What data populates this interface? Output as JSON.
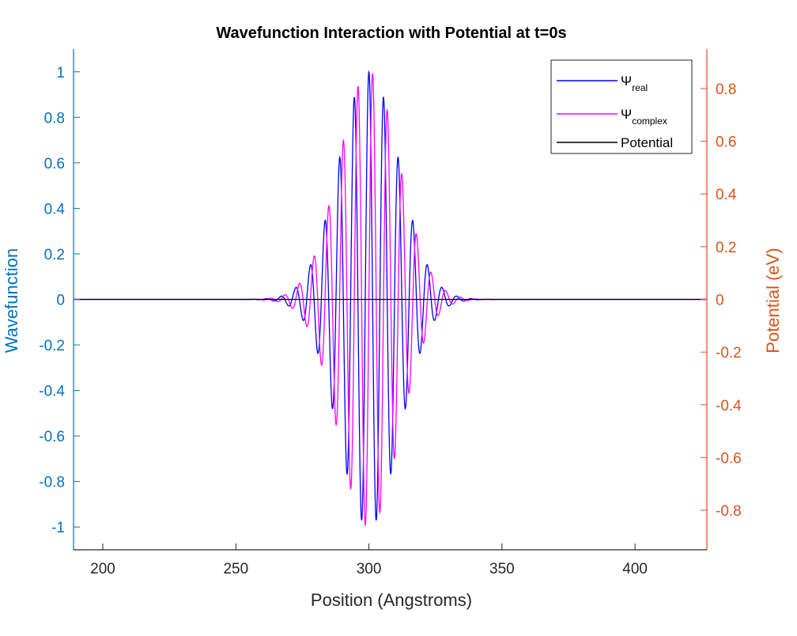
{
  "chart_data": {
    "type": "line",
    "title": "Wavefunction Interaction with Potential at t=0s",
    "xlabel": "Position (Angstroms)",
    "ylabel_left": "Wavefunction",
    "ylabel_right": "Potential (eV)",
    "xlim": [
      189,
      427
    ],
    "ylim_left": [
      -1.1,
      1.1
    ],
    "ylim_right": [
      -0.95,
      0.95
    ],
    "x_ticks": [
      200,
      250,
      300,
      350,
      400
    ],
    "y_ticks_left": [
      1,
      0.8,
      0.6,
      0.4,
      0.2,
      0,
      -0.2,
      -0.4,
      -0.6,
      -0.8,
      -1
    ],
    "y_ticks_right": [
      0.8,
      0.6,
      0.4,
      0.2,
      0,
      -0.2,
      -0.4,
      -0.6,
      -0.8
    ],
    "grid": false,
    "legend_position": "top-right",
    "wave_packet": {
      "center": 300,
      "width": 16,
      "amplitude": 1.0,
      "period": 5.5
    },
    "series": [
      {
        "name": "Ψ",
        "subscript": "real",
        "axis": "left",
        "color": "#0000ff",
        "kind": "cos"
      },
      {
        "name": "Ψ",
        "subscript": "complex",
        "axis": "left",
        "color": "#ff00ff",
        "kind": "sin"
      },
      {
        "name": "Potential",
        "subscript": "",
        "axis": "right",
        "color": "#000000",
        "kind": "constant",
        "value": 0
      }
    ],
    "colors": {
      "left_axis": "#0072bd",
      "right_axis": "#d95319",
      "bottom_axis": "#262626"
    }
  }
}
